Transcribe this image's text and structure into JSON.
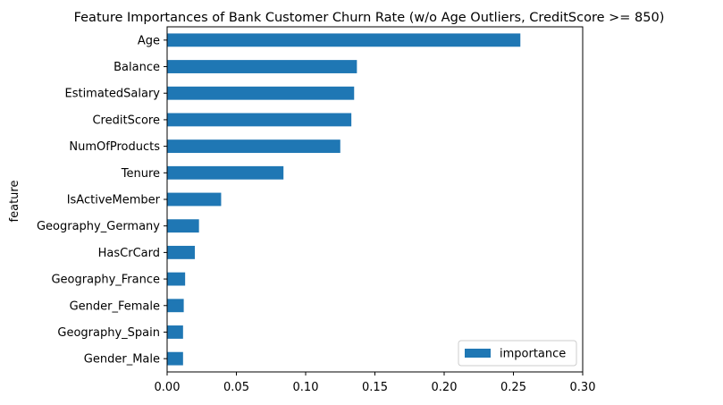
{
  "chart_data": {
    "type": "bar",
    "orientation": "horizontal",
    "title": "Feature Importances of Bank Customer Churn Rate (w/o Age Outliers, CreditScore >= 850)",
    "xlabel": "",
    "ylabel": "feature",
    "xlim": [
      0,
      0.3
    ],
    "xticks": [
      0.0,
      0.05,
      0.1,
      0.15,
      0.2,
      0.25,
      0.3
    ],
    "xtick_labels": [
      "0.00",
      "0.05",
      "0.10",
      "0.15",
      "0.20",
      "0.25",
      "0.30"
    ],
    "grid": false,
    "legend_position": "lower-right",
    "bar_color": "#1f77b4",
    "categories": [
      "Age",
      "Balance",
      "EstimatedSalary",
      "CreditScore",
      "NumOfProducts",
      "Tenure",
      "IsActiveMember",
      "Geography_Germany",
      "HasCrCard",
      "Geography_France",
      "Gender_Female",
      "Geography_Spain",
      "Gender_Male"
    ],
    "series": [
      {
        "name": "importance",
        "values": [
          0.255,
          0.137,
          0.135,
          0.133,
          0.125,
          0.084,
          0.039,
          0.023,
          0.02,
          0.013,
          0.012,
          0.0115,
          0.0115
        ]
      }
    ]
  }
}
